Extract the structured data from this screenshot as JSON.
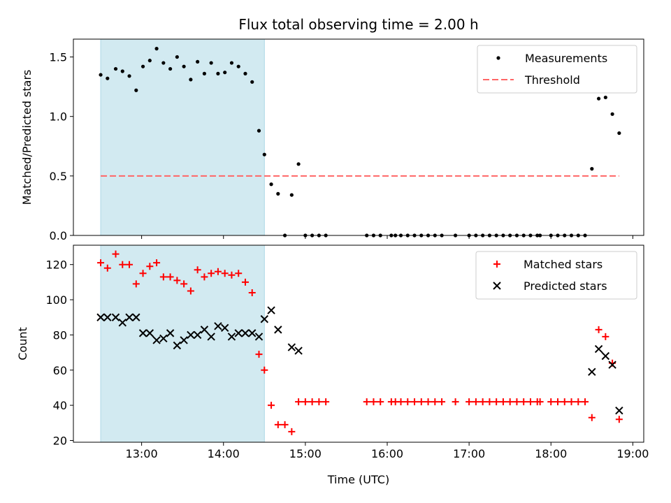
{
  "figure": {
    "title": "Flux total observing time = 2.00 h"
  },
  "colors": {
    "shade": "#add8e6",
    "threshold": "#ff6666",
    "matched": "#ff0000",
    "predicted": "#000000",
    "measurements": "#000000"
  },
  "chart_data": [
    {
      "type": "scatter",
      "ylabel": "Matched/Predicted stars",
      "ylim": [
        0,
        1.65
      ],
      "xlim": [
        "12:10",
        "19:08"
      ],
      "yticks": [
        0,
        0.5,
        1.0,
        1.5
      ],
      "ytick_labels": [
        "0.0",
        "0.5",
        "1.0",
        "1.5"
      ],
      "shaded_region": [
        "12:30",
        "14:30"
      ],
      "legend": {
        "position": "top-right",
        "entries": [
          "Measurements",
          "Threshold"
        ]
      },
      "threshold": {
        "name": "Threshold",
        "y": 0.5,
        "x": [
          "12:30",
          "18:50"
        ]
      },
      "series": [
        {
          "name": "Measurements",
          "x": [
            "12:30",
            "12:35",
            "12:41",
            "12:46",
            "12:51",
            "12:56",
            "13:01",
            "13:06",
            "13:11",
            "13:16",
            "13:21",
            "13:26",
            "13:31",
            "13:36",
            "13:41",
            "13:46",
            "13:51",
            "13:56",
            "14:01",
            "14:06",
            "14:11",
            "14:16",
            "14:21",
            "14:26",
            "14:30",
            "14:35",
            "14:40",
            "14:45",
            "14:50",
            "14:55",
            "15:00",
            "15:05",
            "15:10",
            "15:15",
            "15:45",
            "15:50",
            "15:55",
            "16:03",
            "16:06",
            "16:10",
            "16:15",
            "16:20",
            "16:25",
            "16:30",
            "16:35",
            "16:40",
            "16:50",
            "17:00",
            "17:05",
            "17:10",
            "17:15",
            "17:20",
            "17:25",
            "17:30",
            "17:35",
            "17:40",
            "17:45",
            "17:50",
            "17:52",
            "18:00",
            "18:05",
            "18:10",
            "18:15",
            "18:20",
            "18:25",
            "18:30",
            "18:35",
            "18:40",
            "18:45",
            "18:50"
          ],
          "y": [
            1.35,
            1.32,
            1.4,
            1.38,
            1.34,
            1.22,
            1.42,
            1.47,
            1.57,
            1.45,
            1.4,
            1.5,
            1.42,
            1.31,
            1.46,
            1.36,
            1.45,
            1.36,
            1.37,
            1.45,
            1.42,
            1.36,
            1.29,
            0.88,
            0.68,
            0.43,
            0.35,
            0.0,
            0.34,
            0.6,
            0.0,
            0.0,
            0.0,
            0.0,
            0.0,
            0.0,
            0.0,
            0.0,
            0.0,
            0.0,
            0.0,
            0.0,
            0.0,
            0.0,
            0.0,
            0.0,
            0.0,
            0.0,
            0.0,
            0.0,
            0.0,
            0.0,
            0.0,
            0.0,
            0.0,
            0.0,
            0.0,
            0.0,
            0.0,
            0.0,
            0.0,
            0.0,
            0.0,
            0.0,
            0.0,
            0.56,
            1.15,
            1.16,
            1.02,
            0.86
          ]
        }
      ]
    },
    {
      "type": "scatter",
      "xlabel": "Time (UTC)",
      "ylabel": "Count",
      "ylim": [
        19,
        131
      ],
      "xlim": [
        "12:10",
        "19:08"
      ],
      "xticks": [
        "13:00",
        "14:00",
        "15:00",
        "16:00",
        "17:00",
        "18:00",
        "19:00"
      ],
      "yticks": [
        20,
        40,
        60,
        80,
        100,
        120
      ],
      "shaded_region": [
        "12:30",
        "14:30"
      ],
      "legend": {
        "position": "top-right",
        "entries": [
          "Matched stars",
          "Predicted stars"
        ]
      },
      "series": [
        {
          "name": "Matched stars",
          "marker": "plus",
          "x": [
            "12:30",
            "12:35",
            "12:41",
            "12:46",
            "12:51",
            "12:56",
            "13:01",
            "13:06",
            "13:11",
            "13:16",
            "13:21",
            "13:26",
            "13:31",
            "13:36",
            "13:41",
            "13:46",
            "13:51",
            "13:56",
            "14:01",
            "14:06",
            "14:11",
            "14:16",
            "14:21",
            "14:26",
            "14:30",
            "14:35",
            "14:40",
            "14:45",
            "14:50",
            "14:55",
            "15:00",
            "15:05",
            "15:10",
            "15:15",
            "15:45",
            "15:50",
            "15:55",
            "16:03",
            "16:06",
            "16:10",
            "16:15",
            "16:20",
            "16:25",
            "16:30",
            "16:35",
            "16:40",
            "16:50",
            "17:00",
            "17:05",
            "17:10",
            "17:15",
            "17:20",
            "17:25",
            "17:30",
            "17:35",
            "17:40",
            "17:45",
            "17:50",
            "17:52",
            "18:00",
            "18:05",
            "18:10",
            "18:15",
            "18:20",
            "18:25",
            "18:30",
            "18:35",
            "18:40",
            "18:45",
            "18:50"
          ],
          "y": [
            121,
            118,
            126,
            120,
            120,
            109,
            115,
            119,
            121,
            113,
            113,
            111,
            109,
            105,
            117,
            113,
            115,
            116,
            115,
            114,
            115,
            110,
            104,
            69,
            60,
            40,
            29,
            29,
            25,
            42,
            42,
            42,
            42,
            42,
            42,
            42,
            42,
            42,
            42,
            42,
            42,
            42,
            42,
            42,
            42,
            42,
            42,
            42,
            42,
            42,
            42,
            42,
            42,
            42,
            42,
            42,
            42,
            42,
            42,
            42,
            42,
            42,
            42,
            42,
            42,
            33,
            83,
            79,
            64,
            32
          ]
        },
        {
          "name": "Predicted stars",
          "marker": "x",
          "x": [
            "12:30",
            "12:35",
            "12:41",
            "12:46",
            "12:51",
            "12:56",
            "13:01",
            "13:06",
            "13:11",
            "13:16",
            "13:21",
            "13:26",
            "13:31",
            "13:36",
            "13:41",
            "13:46",
            "13:51",
            "13:56",
            "14:01",
            "14:06",
            "14:11",
            "14:16",
            "14:21",
            "14:26",
            "14:30",
            "14:35",
            "14:40",
            "14:50",
            "14:55",
            "18:30",
            "18:35",
            "18:40",
            "18:45",
            "18:50"
          ],
          "y": [
            90,
            90,
            90,
            87,
            90,
            90,
            81,
            81,
            77,
            78,
            81,
            74,
            77,
            80,
            80,
            83,
            79,
            85,
            84,
            79,
            81,
            81,
            81,
            79,
            89,
            94,
            83,
            73,
            71,
            59,
            72,
            68,
            63,
            37
          ]
        }
      ]
    }
  ]
}
